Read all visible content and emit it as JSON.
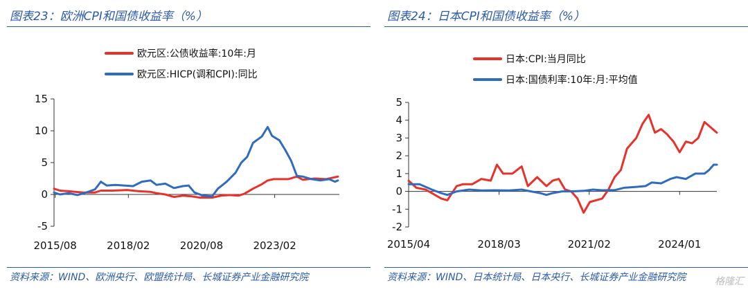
{
  "panels": [
    {
      "figure_title": "图表23：欧洲CPI和国债收益率（%）",
      "source": "资料来源：WIND、欧洲央行、欧盟统计局、长城证券产业金融研究院",
      "chart_data": {
        "type": "line",
        "ylim": [
          -5,
          15
        ],
        "yticks": [
          -5,
          0,
          5,
          10,
          15
        ],
        "xlim": [
          2015.5,
          2025.25
        ],
        "xticks": [
          {
            "value": 2015.54,
            "label": "2015/08"
          },
          {
            "value": 2018.04,
            "label": "2018/02"
          },
          {
            "value": 2020.54,
            "label": "2020/08"
          },
          {
            "value": 2023.04,
            "label": "2023/02"
          }
        ],
        "legend_position": "top",
        "grid": false,
        "series": [
          {
            "name": "欧元区:公债收益率:10年:月",
            "color": "#e8312a",
            "points": [
              [
                2015.5,
                0.9
              ],
              [
                2015.7,
                0.6
              ],
              [
                2016.0,
                0.5
              ],
              [
                2016.5,
                0.3
              ],
              [
                2016.9,
                0.3
              ],
              [
                2017.1,
                0.6
              ],
              [
                2017.5,
                0.6
              ],
              [
                2018.0,
                0.7
              ],
              [
                2018.4,
                0.5
              ],
              [
                2018.8,
                0.4
              ],
              [
                2019.0,
                0.2
              ],
              [
                2019.3,
                0.0
              ],
              [
                2019.6,
                -0.4
              ],
              [
                2019.9,
                -0.2
              ],
              [
                2020.2,
                -0.3
              ],
              [
                2020.5,
                -0.5
              ],
              [
                2020.9,
                -0.5
              ],
              [
                2021.2,
                -0.2
              ],
              [
                2021.5,
                -0.1
              ],
              [
                2021.8,
                -0.2
              ],
              [
                2022.0,
                0.1
              ],
              [
                2022.3,
                0.9
              ],
              [
                2022.6,
                1.6
              ],
              [
                2022.8,
                2.2
              ],
              [
                2023.0,
                2.4
              ],
              [
                2023.5,
                2.4
              ],
              [
                2023.8,
                2.8
              ],
              [
                2024.0,
                2.3
              ],
              [
                2024.4,
                2.5
              ],
              [
                2024.8,
                2.4
              ],
              [
                2025.2,
                2.8
              ]
            ]
          },
          {
            "name": "欧元区:HICP(调和CPI):同比",
            "color": "#2f6bbf",
            "points": [
              [
                2015.5,
                0.3
              ],
              [
                2015.7,
                0.0
              ],
              [
                2016.0,
                0.2
              ],
              [
                2016.3,
                -0.1
              ],
              [
                2016.6,
                0.3
              ],
              [
                2016.9,
                0.8
              ],
              [
                2017.1,
                2.0
              ],
              [
                2017.3,
                1.4
              ],
              [
                2017.6,
                1.5
              ],
              [
                2017.9,
                1.4
              ],
              [
                2018.2,
                1.3
              ],
              [
                2018.5,
                2.0
              ],
              [
                2018.8,
                2.2
              ],
              [
                2019.0,
                1.5
              ],
              [
                2019.3,
                1.7
              ],
              [
                2019.6,
                1.0
              ],
              [
                2019.9,
                1.3
              ],
              [
                2020.1,
                1.4
              ],
              [
                2020.3,
                0.3
              ],
              [
                2020.6,
                -0.2
              ],
              [
                2020.9,
                -0.3
              ],
              [
                2021.1,
                0.9
              ],
              [
                2021.4,
                2.0
              ],
              [
                2021.7,
                3.4
              ],
              [
                2021.9,
                5.0
              ],
              [
                2022.1,
                5.9
              ],
              [
                2022.3,
                8.1
              ],
              [
                2022.6,
                9.1
              ],
              [
                2022.8,
                10.6
              ],
              [
                2022.95,
                9.2
              ],
              [
                2023.2,
                8.5
              ],
              [
                2023.4,
                7.0
              ],
              [
                2023.6,
                5.3
              ],
              [
                2023.8,
                2.9
              ],
              [
                2024.0,
                2.8
              ],
              [
                2024.3,
                2.4
              ],
              [
                2024.6,
                2.2
              ],
              [
                2024.9,
                2.4
              ],
              [
                2025.1,
                2.0
              ],
              [
                2025.2,
                2.2
              ]
            ]
          }
        ]
      }
    },
    {
      "figure_title": "图表24：日本CPI和国债收益率（%）",
      "source": "资料来源：WIND、日本统计局、日本央行、长城证券产业金融研究院",
      "chart_data": {
        "type": "line",
        "ylim": [
          -2,
          5
        ],
        "yticks": [
          -2,
          -1,
          0,
          1,
          2,
          3,
          4,
          5
        ],
        "xlim": [
          2015.25,
          2025.2
        ],
        "xticks": [
          {
            "value": 2015.25,
            "label": "2015/04"
          },
          {
            "value": 2018.17,
            "label": "2018/03"
          },
          {
            "value": 2021.08,
            "label": "2021/02"
          },
          {
            "value": 2024.0,
            "label": "2024/01"
          }
        ],
        "legend_position": "top",
        "grid": false,
        "series": [
          {
            "name": "日本:CPI:当月同比",
            "color": "#e8312a",
            "points": [
              [
                2015.25,
                0.6
              ],
              [
                2015.5,
                0.2
              ],
              [
                2015.8,
                0.1
              ],
              [
                2016.0,
                -0.1
              ],
              [
                2016.3,
                -0.4
              ],
              [
                2016.5,
                -0.5
              ],
              [
                2016.8,
                0.3
              ],
              [
                2017.0,
                0.4
              ],
              [
                2017.3,
                0.4
              ],
              [
                2017.6,
                0.7
              ],
              [
                2017.9,
                0.6
              ],
              [
                2018.1,
                1.5
              ],
              [
                2018.3,
                1.0
              ],
              [
                2018.6,
                1.0
              ],
              [
                2018.9,
                1.4
              ],
              [
                2019.1,
                0.3
              ],
              [
                2019.4,
                0.8
              ],
              [
                2019.7,
                0.3
              ],
              [
                2019.9,
                0.6
              ],
              [
                2020.1,
                0.7
              ],
              [
                2020.3,
                0.1
              ],
              [
                2020.5,
                0.0
              ],
              [
                2020.7,
                -0.4
              ],
              [
                2020.9,
                -1.2
              ],
              [
                2021.1,
                -0.6
              ],
              [
                2021.3,
                -0.5
              ],
              [
                2021.5,
                -0.4
              ],
              [
                2021.7,
                0.1
              ],
              [
                2021.9,
                0.8
              ],
              [
                2022.1,
                1.2
              ],
              [
                2022.3,
                2.4
              ],
              [
                2022.6,
                3.0
              ],
              [
                2022.8,
                3.8
              ],
              [
                2023.0,
                4.3
              ],
              [
                2023.2,
                3.3
              ],
              [
                2023.4,
                3.5
              ],
              [
                2023.6,
                3.2
              ],
              [
                2023.8,
                2.8
              ],
              [
                2024.0,
                2.2
              ],
              [
                2024.2,
                2.8
              ],
              [
                2024.4,
                2.7
              ],
              [
                2024.6,
                3.0
              ],
              [
                2024.8,
                3.9
              ],
              [
                2025.0,
                3.6
              ],
              [
                2025.2,
                3.3
              ]
            ]
          },
          {
            "name": "日本:国债利率:10年:月:平均值",
            "color": "#2f6bbf",
            "points": [
              [
                2015.25,
                0.4
              ],
              [
                2015.6,
                0.4
              ],
              [
                2016.0,
                0.1
              ],
              [
                2016.3,
                -0.1
              ],
              [
                2016.5,
                -0.2
              ],
              [
                2016.8,
                0.0
              ],
              [
                2017.2,
                0.1
              ],
              [
                2017.6,
                0.05
              ],
              [
                2018.0,
                0.06
              ],
              [
                2018.5,
                0.05
              ],
              [
                2018.9,
                0.1
              ],
              [
                2019.2,
                0.0
              ],
              [
                2019.5,
                -0.1
              ],
              [
                2019.7,
                -0.2
              ],
              [
                2019.9,
                -0.1
              ],
              [
                2020.2,
                0.0
              ],
              [
                2020.5,
                0.0
              ],
              [
                2020.9,
                0.03
              ],
              [
                2021.2,
                0.1
              ],
              [
                2021.5,
                0.06
              ],
              [
                2021.9,
                0.07
              ],
              [
                2022.2,
                0.2
              ],
              [
                2022.6,
                0.25
              ],
              [
                2022.9,
                0.3
              ],
              [
                2023.1,
                0.5
              ],
              [
                2023.4,
                0.45
              ],
              [
                2023.7,
                0.7
              ],
              [
                2023.9,
                0.8
              ],
              [
                2024.2,
                0.7
              ],
              [
                2024.5,
                1.0
              ],
              [
                2024.8,
                1.0
              ],
              [
                2024.95,
                1.2
              ],
              [
                2025.1,
                1.5
              ],
              [
                2025.2,
                1.5
              ]
            ]
          }
        ]
      }
    }
  ],
  "watermark": "格隆汇"
}
